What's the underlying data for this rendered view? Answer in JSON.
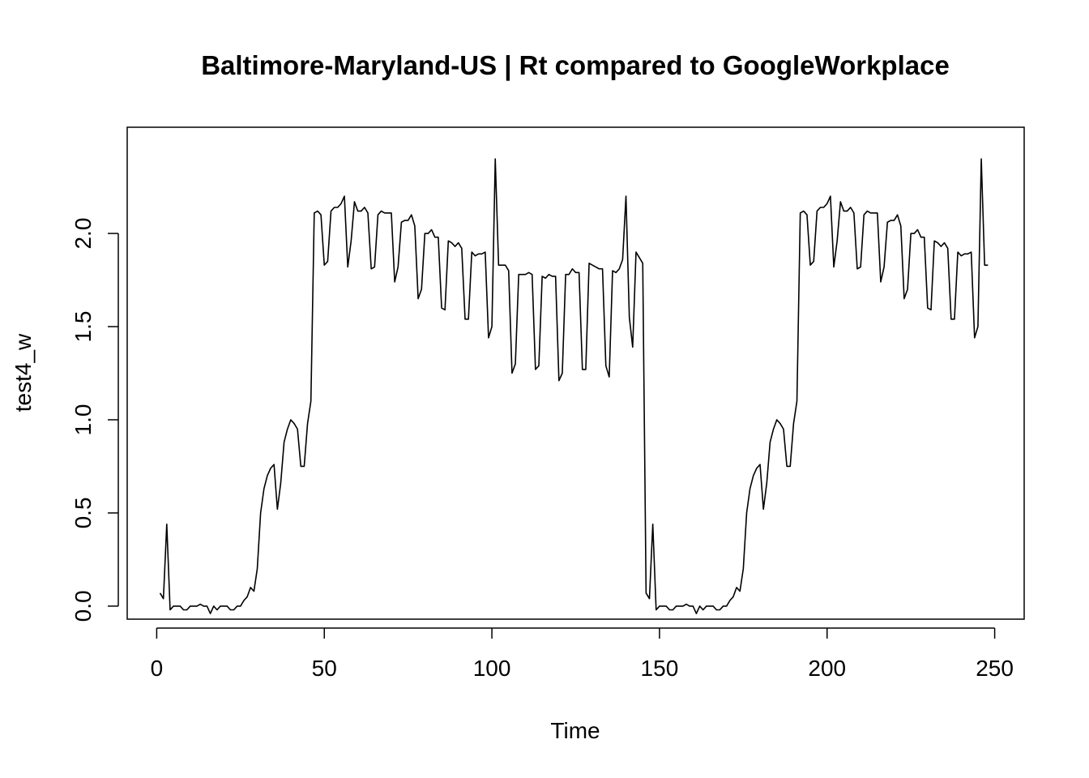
{
  "chart_data": {
    "type": "line",
    "title": "Baltimore-Maryland-US | Rt compared to GoogleWorkplace",
    "xlabel": "Time",
    "ylabel": "test4_w",
    "xlim": [
      -8.8,
      258.8
    ],
    "ylim": [
      -0.07,
      2.57
    ],
    "x_ticks": [
      0,
      50,
      100,
      150,
      200,
      250
    ],
    "x_tick_labels": [
      "0",
      "50",
      "100",
      "150",
      "200",
      "250"
    ],
    "y_ticks": [
      0.0,
      0.5,
      1.0,
      1.5,
      2.0
    ],
    "y_tick_labels": [
      "0.0",
      "0.5",
      "1.0",
      "1.5",
      "2.0"
    ],
    "grid": false,
    "legend": "none",
    "line_color": "#000000",
    "series": [
      {
        "x_start": 1,
        "x_step": 1,
        "values": [
          0.07,
          0.04,
          0.44,
          -0.02,
          0.0,
          0.0,
          0.0,
          -0.02,
          -0.02,
          0.0,
          0.0,
          0.0,
          0.01,
          0.0,
          0.0,
          -0.04,
          0.0,
          -0.02,
          0.0,
          0.0,
          0.0,
          -0.02,
          -0.02,
          0.0,
          0.0,
          0.03,
          0.05,
          0.1,
          0.08,
          0.2,
          0.5,
          0.63,
          0.7,
          0.74,
          0.76,
          0.52,
          0.66,
          0.88,
          0.95,
          1.0,
          0.98,
          0.95,
          0.75,
          0.75,
          0.98,
          1.1,
          2.11,
          2.12,
          2.1,
          1.83,
          1.85,
          2.12,
          2.14,
          2.14,
          2.16,
          2.2,
          1.82,
          1.96,
          2.17,
          2.12,
          2.12,
          2.14,
          2.11,
          1.81,
          1.82,
          2.1,
          2.12,
          2.11,
          2.11,
          2.11,
          1.74,
          1.82,
          2.06,
          2.07,
          2.07,
          2.1,
          2.04,
          1.65,
          1.7,
          2.0,
          2.0,
          2.02,
          1.98,
          1.98,
          1.6,
          1.59,
          1.96,
          1.95,
          1.93,
          1.95,
          1.92,
          1.54,
          1.54,
          1.9,
          1.88,
          1.89,
          1.89,
          1.9,
          1.44,
          1.5,
          2.4,
          1.83,
          1.83,
          1.83,
          1.8,
          1.25,
          1.3,
          1.78,
          1.78,
          1.78,
          1.79,
          1.78,
          1.27,
          1.29,
          1.77,
          1.76,
          1.78,
          1.77,
          1.77,
          1.21,
          1.25,
          1.78,
          1.78,
          1.81,
          1.79,
          1.79,
          1.27,
          1.27,
          1.84,
          1.83,
          1.82,
          1.81,
          1.81,
          1.29,
          1.23,
          1.8,
          1.79,
          1.81,
          1.86,
          2.2,
          1.55,
          1.39,
          1.9,
          1.87,
          1.84,
          0.07,
          0.04,
          0.44,
          -0.02,
          0.0,
          0.0,
          0.0,
          -0.02,
          -0.02,
          0.0,
          0.0,
          0.0,
          0.01,
          0.0,
          0.0,
          -0.04,
          0.0,
          -0.02,
          0.0,
          0.0,
          0.0,
          -0.02,
          -0.02,
          0.0,
          0.0,
          0.03,
          0.05,
          0.1,
          0.08,
          0.2,
          0.5,
          0.63,
          0.7,
          0.74,
          0.76,
          0.52,
          0.66,
          0.88,
          0.95,
          1.0,
          0.98,
          0.95,
          0.75,
          0.75,
          0.98,
          1.1,
          2.11,
          2.12,
          2.1,
          1.83,
          1.85,
          2.12,
          2.14,
          2.14,
          2.16,
          2.2,
          1.82,
          1.96,
          2.17,
          2.12,
          2.12,
          2.14,
          2.11,
          1.81,
          1.82,
          2.1,
          2.12,
          2.11,
          2.11,
          2.11,
          1.74,
          1.82,
          2.06,
          2.07,
          2.07,
          2.1,
          2.04,
          1.65,
          1.7,
          2.0,
          2.0,
          2.02,
          1.98,
          1.98,
          1.6,
          1.59,
          1.96,
          1.95,
          1.93,
          1.95,
          1.92,
          1.54,
          1.54,
          1.9,
          1.88,
          1.89,
          1.89,
          1.9,
          1.44,
          1.5,
          2.4,
          1.83,
          1.83
        ]
      }
    ]
  }
}
